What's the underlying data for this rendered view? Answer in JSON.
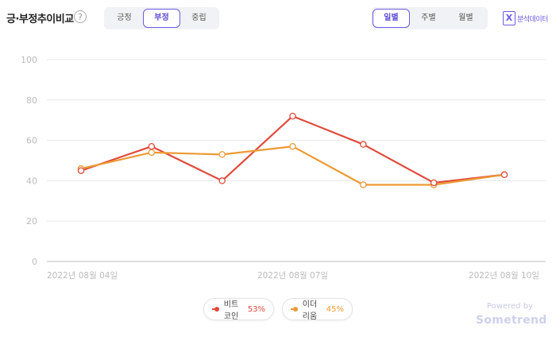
{
  "header": {
    "title": "긍·부정추이비교",
    "help": "?",
    "sentiment_tabs": [
      {
        "label": "긍정",
        "active": false
      },
      {
        "label": "부정",
        "active": true
      },
      {
        "label": "중립",
        "active": false
      }
    ],
    "period_tabs": [
      {
        "label": "일별",
        "active": true
      },
      {
        "label": "주별",
        "active": false
      },
      {
        "label": "월별",
        "active": false
      }
    ],
    "export_icon": "excel-icon",
    "export_label": "분석데이터"
  },
  "chart_data": {
    "type": "line",
    "categories": [
      "2022-08-04",
      "2022-08-05",
      "2022-08-06",
      "2022-08-07",
      "2022-08-08",
      "2022-08-09",
      "2022-08-10"
    ],
    "x_tick_labels": [
      {
        "index": 0,
        "label": "2022년 08월 04일"
      },
      {
        "index": 3,
        "label": "2022년 08월 07일"
      },
      {
        "index": 6,
        "label": "2022년 08월 10일"
      }
    ],
    "y_ticks": [
      0,
      20,
      40,
      60,
      80,
      100
    ],
    "ylim": [
      0,
      100
    ],
    "grid": true,
    "legend_position": "bottom-center",
    "series": [
      {
        "name": "비트코인",
        "percent": "53%",
        "color": "#e04b3c",
        "values": [
          45,
          57,
          40,
          72,
          58,
          39,
          43
        ]
      },
      {
        "name": "이더리움",
        "percent": "45%",
        "color": "#ec9a34",
        "values": [
          46,
          54,
          53,
          57,
          38,
          38,
          43
        ]
      }
    ]
  },
  "footer": {
    "powered_by": "Powered by",
    "brand": "Sometrend"
  }
}
